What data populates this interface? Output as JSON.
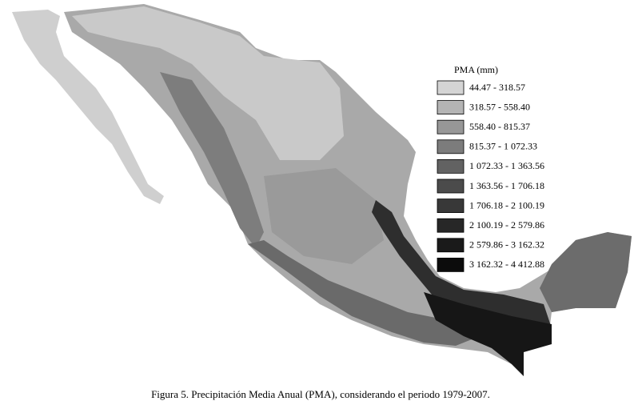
{
  "legend": {
    "title": "PMA (mm)",
    "items": [
      {
        "label": "44.47 - 318.57",
        "color": "#d4d4d4"
      },
      {
        "label": "318.57 - 558.40",
        "color": "#b4b4b4"
      },
      {
        "label": "558.40 - 815.37",
        "color": "#979797"
      },
      {
        "label": "815.37 - 1 072.33",
        "color": "#7c7c7c"
      },
      {
        "label": "1 072.33 - 1 363.56",
        "color": "#626262"
      },
      {
        "label": "1 363.56 - 1 706.18",
        "color": "#4b4b4b"
      },
      {
        "label": "1 706.18 - 2 100.19",
        "color": "#383838"
      },
      {
        "label": "2 100.19 - 2 579.86",
        "color": "#272727"
      },
      {
        "label": "2 579.86 - 3 162.32",
        "color": "#1a1a1a"
      },
      {
        "label": "3 162.32 - 4 412.88",
        "color": "#0c0c0c"
      }
    ]
  },
  "caption": "Figura 5. Precipitación Media Anual (PMA), considerando el periodo 1979-2007."
}
